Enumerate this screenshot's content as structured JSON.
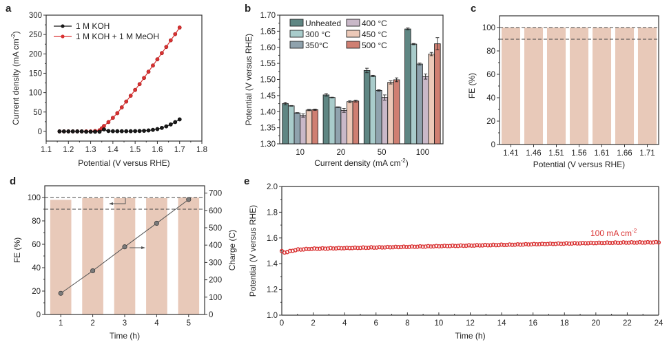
{
  "chart_data": [
    {
      "id": "a",
      "panel_label": "a",
      "type": "line",
      "xlabel": "Potential (V versus RHE)",
      "ylabel": "Current density (mA cm",
      "ylabel_sup": "-2",
      "ylabel_end": ")",
      "xlim": [
        1.1,
        1.8
      ],
      "ylim": [
        -25,
        300
      ],
      "xticks": [
        "1.1",
        "1.2",
        "1.3",
        "1.4",
        "1.5",
        "1.6",
        "1.7",
        "1.8"
      ],
      "yticks": [
        "0",
        "50",
        "100",
        "150",
        "200",
        "250",
        "300"
      ],
      "legend_position": "top-left",
      "series": [
        {
          "name": "1 M KOH",
          "color": "#1a1a1a",
          "x": [
            1.16,
            1.18,
            1.2,
            1.22,
            1.24,
            1.26,
            1.28,
            1.3,
            1.32,
            1.34,
            1.36,
            1.38,
            1.4,
            1.42,
            1.44,
            1.46,
            1.48,
            1.5,
            1.52,
            1.54,
            1.56,
            1.58,
            1.6,
            1.62,
            1.64,
            1.66,
            1.68,
            1.7
          ],
          "y": [
            0,
            0,
            0,
            0,
            0,
            0,
            -1,
            -1,
            -1,
            -1,
            5,
            1,
            0.5,
            0.5,
            0.5,
            0.5,
            0.5,
            0.8,
            1,
            1.5,
            2.5,
            4,
            6,
            9,
            13,
            18,
            24,
            31
          ]
        },
        {
          "name": "1 M KOH + 1 M MeOH",
          "color": "#d93232",
          "x": [
            1.16,
            1.18,
            1.2,
            1.22,
            1.24,
            1.26,
            1.28,
            1.3,
            1.32,
            1.34,
            1.35,
            1.36,
            1.38,
            1.4,
            1.42,
            1.44,
            1.46,
            1.48,
            1.5,
            1.52,
            1.54,
            1.56,
            1.58,
            1.6,
            1.62,
            1.64,
            1.66,
            1.68,
            1.7
          ],
          "y": [
            0,
            0,
            0,
            0,
            0,
            0,
            0,
            0,
            1,
            3,
            8,
            14,
            24,
            35,
            47,
            62,
            77,
            92,
            107,
            122,
            138,
            154,
            170,
            186,
            202,
            218,
            235,
            251,
            268
          ]
        }
      ]
    },
    {
      "id": "b",
      "panel_label": "b",
      "type": "bar",
      "xlabel": "Current density (mA cm",
      "xlabel_sup": "-2",
      "xlabel_end": ")",
      "ylabel": "Potential (V versus RHE)",
      "ylim": [
        1.3,
        1.7
      ],
      "yticks": [
        "1.30",
        "1.35",
        "1.40",
        "1.45",
        "1.50",
        "1.55",
        "1.60",
        "1.65",
        "1.70"
      ],
      "categories": [
        "10",
        "20",
        "50",
        "100"
      ],
      "legend_position": "top-left",
      "series": [
        {
          "name": "Unheated",
          "color": "#5f8683",
          "values": [
            1.425,
            1.452,
            1.528,
            1.657
          ],
          "errors": [
            0.004,
            0.004,
            0.007,
            0.003
          ]
        },
        {
          "name": "300 °C",
          "color": "#a9cccb",
          "values": [
            1.418,
            1.444,
            1.511,
            1.61
          ],
          "errors": [
            0.001,
            0.001,
            0.002,
            0.002
          ]
        },
        {
          "name": "350°C",
          "color": "#8fa2ad",
          "values": [
            1.396,
            1.414,
            1.466,
            1.548
          ],
          "errors": [
            0.001,
            0.001,
            0.002,
            0.003
          ]
        },
        {
          "name": "400 °C",
          "color": "#c9b8c8",
          "values": [
            1.388,
            1.404,
            1.444,
            1.509
          ],
          "errors": [
            0.005,
            0.006,
            0.008,
            0.008
          ]
        },
        {
          "name": "450 °C",
          "color": "#ecc9b8",
          "values": [
            1.405,
            1.431,
            1.491,
            1.579
          ],
          "errors": [
            0.002,
            0.003,
            0.005,
            0.005
          ]
        },
        {
          "name": "500 °C",
          "color": "#cf7f72",
          "values": [
            1.406,
            1.433,
            1.499,
            1.611
          ],
          "errors": [
            0.002,
            0.003,
            0.006,
            0.019
          ]
        }
      ]
    },
    {
      "id": "c",
      "panel_label": "c",
      "type": "bar",
      "xlabel": "Potential (V versus RHE)",
      "ylabel": "FE (%)",
      "ylim": [
        0,
        110
      ],
      "yticks": [
        "0",
        "20",
        "40",
        "60",
        "80",
        "100"
      ],
      "categories": [
        "1.41",
        "1.46",
        "1.51",
        "1.56",
        "1.61",
        "1.66",
        "1.71"
      ],
      "values": [
        100,
        100,
        100,
        100,
        100,
        100,
        100
      ],
      "bar_color": "#e8c9b9",
      "reference_lines": [
        100,
        90
      ]
    },
    {
      "id": "d",
      "panel_label": "d",
      "type": "bar",
      "xlabel": "Time (h)",
      "ylabel": "FE (%)",
      "y2label": "Charge (C)",
      "ylim": [
        0,
        110
      ],
      "y2lim": [
        0,
        742
      ],
      "yticks": [
        "0",
        "20",
        "40",
        "60",
        "80",
        "100"
      ],
      "y2ticks": [
        "0",
        "100",
        "200",
        "300",
        "400",
        "500",
        "600",
        "700"
      ],
      "categories": [
        "1",
        "2",
        "3",
        "4",
        "5"
      ],
      "values": [
        98,
        99.5,
        99.5,
        99.5,
        100
      ],
      "bar_color": "#e8c9b9",
      "reference_lines": [
        100,
        90
      ],
      "line_series": {
        "name": "Charge",
        "axis": "right",
        "x": [
          1,
          2,
          3,
          4,
          5
        ],
        "y": [
          122,
          252,
          390,
          526,
          663
        ],
        "color": "#555555",
        "marker_color": "#7a7a7a"
      },
      "annotations": [
        "arrow-left: FE axis",
        "arrow-right: Charge axis"
      ]
    },
    {
      "id": "e",
      "panel_label": "e",
      "type": "scatter",
      "xlabel": "Time (h)",
      "ylabel": "Potential (V versus RHE)",
      "xlim": [
        0,
        24
      ],
      "ylim": [
        1.0,
        2.0
      ],
      "xticks": [
        "0",
        "2",
        "4",
        "6",
        "8",
        "10",
        "12",
        "14",
        "16",
        "18",
        "20",
        "22",
        "24"
      ],
      "yticks": [
        "1.0",
        "1.2",
        "1.4",
        "1.6",
        "1.8",
        "2.0"
      ],
      "series": [
        {
          "name": "100 mA cm-2",
          "color": "#d93232",
          "x_start": 0,
          "x_end": 24,
          "n_points": 140,
          "keypoints": {
            "x": [
              0,
              0.2,
              0.5,
              1,
              2,
              4,
              6,
              8,
              10,
              12,
              14,
              16,
              18,
              20,
              22,
              24
            ],
            "y": [
              1.495,
              1.485,
              1.495,
              1.508,
              1.515,
              1.52,
              1.525,
              1.53,
              1.535,
              1.54,
              1.545,
              1.55,
              1.555,
              1.56,
              1.563,
              1.565
            ]
          }
        }
      ],
      "annotation": {
        "text": "100 mA cm",
        "sup": "-2",
        "color": "#d93232"
      }
    }
  ]
}
